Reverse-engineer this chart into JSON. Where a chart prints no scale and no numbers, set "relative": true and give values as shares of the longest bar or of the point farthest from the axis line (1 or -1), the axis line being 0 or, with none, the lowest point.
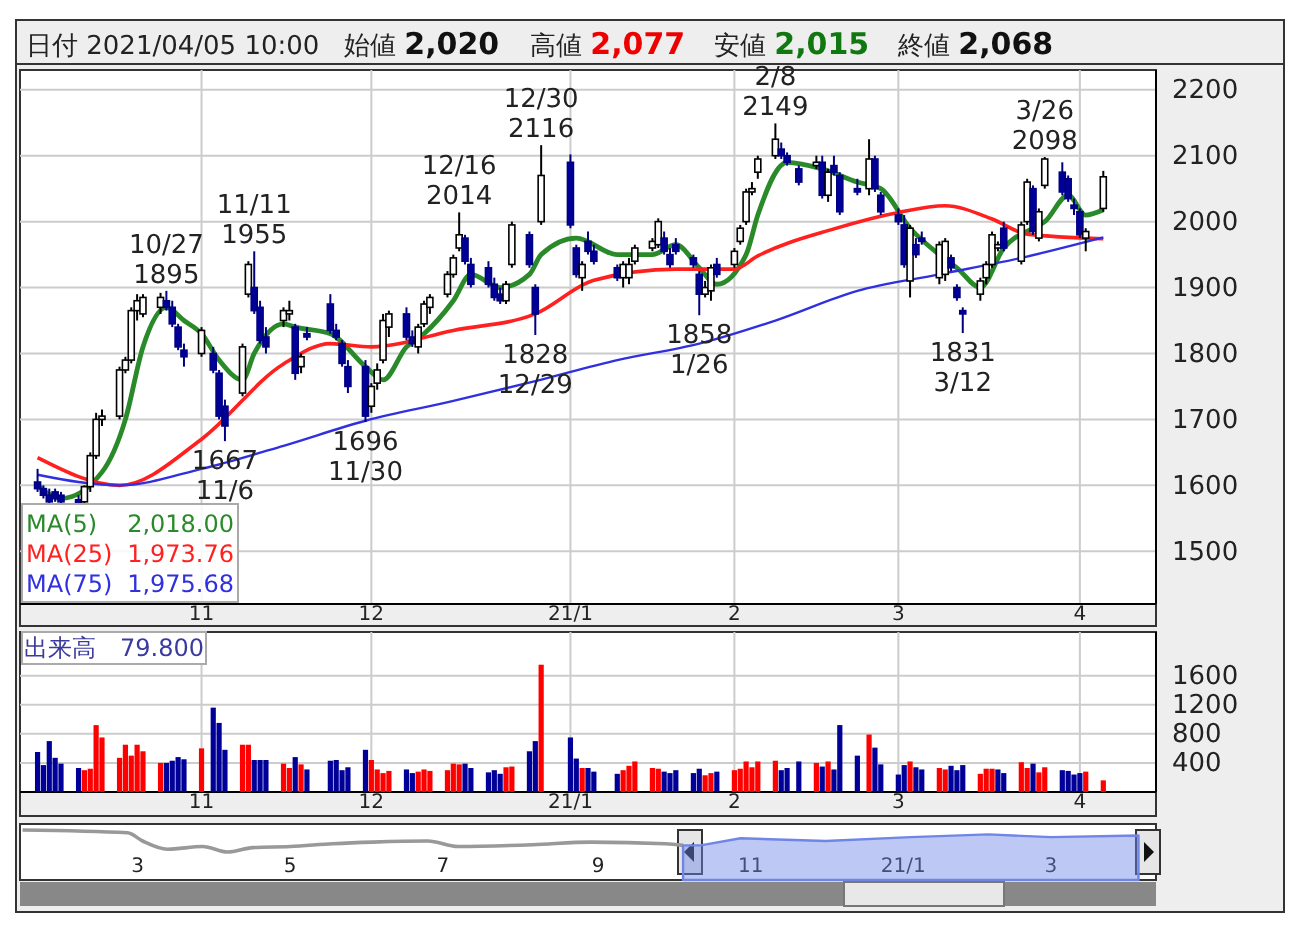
{
  "chart_data": [
    {
      "type": "candlestick",
      "xlim": [
        "2020-10-02",
        "2021-04-14"
      ],
      "ylim": [
        1420,
        2230
      ],
      "yticks": [
        1500,
        1600,
        1700,
        1800,
        1900,
        2000,
        2100,
        2200
      ],
      "xticks": [
        {
          "value": "2020-11-02",
          "label": "11"
        },
        {
          "value": "2020-12-01",
          "label": "12"
        },
        {
          "value": "2021-01-04",
          "label": "21/1"
        },
        {
          "value": "2021-02-01",
          "label": "2"
        },
        {
          "value": "2021-03-01",
          "label": "3"
        },
        {
          "value": "2021-04-01",
          "label": "4"
        }
      ],
      "grid": true,
      "legend": "bottom left",
      "x": [
        "2020-10-05",
        "2020-10-06",
        "2020-10-07",
        "2020-10-08",
        "2020-10-09",
        "2020-10-12",
        "2020-10-13",
        "2020-10-14",
        "2020-10-15",
        "2020-10-16",
        "2020-10-19",
        "2020-10-20",
        "2020-10-21",
        "2020-10-22",
        "2020-10-23",
        "2020-10-26",
        "2020-10-27",
        "2020-10-28",
        "2020-10-29",
        "2020-10-30",
        "2020-11-02",
        "2020-11-04",
        "2020-11-05",
        "2020-11-06",
        "2020-11-09",
        "2020-11-10",
        "2020-11-11",
        "2020-11-12",
        "2020-11-13",
        "2020-11-16",
        "2020-11-17",
        "2020-11-18",
        "2020-11-19",
        "2020-11-20",
        "2020-11-24",
        "2020-11-25",
        "2020-11-26",
        "2020-11-27",
        "2020-11-30",
        "2020-12-01",
        "2020-12-02",
        "2020-12-03",
        "2020-12-04",
        "2020-12-07",
        "2020-12-08",
        "2020-12-09",
        "2020-12-10",
        "2020-12-11",
        "2020-12-14",
        "2020-12-15",
        "2020-12-16",
        "2020-12-17",
        "2020-12-18",
        "2020-12-21",
        "2020-12-22",
        "2020-12-23",
        "2020-12-24",
        "2020-12-25",
        "2020-12-28",
        "2020-12-29",
        "2020-12-30",
        "2021-01-04",
        "2021-01-05",
        "2021-01-06",
        "2021-01-07",
        "2021-01-08",
        "2021-01-12",
        "2021-01-13",
        "2021-01-14",
        "2021-01-15",
        "2021-01-18",
        "2021-01-19",
        "2021-01-20",
        "2021-01-21",
        "2021-01-22",
        "2021-01-25",
        "2021-01-26",
        "2021-01-27",
        "2021-01-28",
        "2021-01-29",
        "2021-02-01",
        "2021-02-02",
        "2021-02-03",
        "2021-02-04",
        "2021-02-05",
        "2021-02-08",
        "2021-02-09",
        "2021-02-10",
        "2021-02-12",
        "2021-02-15",
        "2021-02-16",
        "2021-02-17",
        "2021-02-18",
        "2021-02-19",
        "2021-02-22",
        "2021-02-24",
        "2021-02-25",
        "2021-02-26",
        "2021-03-01",
        "2021-03-02",
        "2021-03-03",
        "2021-03-04",
        "2021-03-05",
        "2021-03-08",
        "2021-03-09",
        "2021-03-10",
        "2021-03-11",
        "2021-03-12",
        "2021-03-15",
        "2021-03-16",
        "2021-03-17",
        "2021-03-18",
        "2021-03-19",
        "2021-03-22",
        "2021-03-23",
        "2021-03-24",
        "2021-03-25",
        "2021-03-26",
        "2021-03-29",
        "2021-03-30",
        "2021-03-31",
        "2021-04-01",
        "2021-04-02",
        "2021-04-05"
      ],
      "ohlc": [
        [
          1605,
          1625,
          1590,
          1595
        ],
        [
          1595,
          1600,
          1580,
          1585
        ],
        [
          1585,
          1595,
          1572,
          1575
        ],
        [
          1590,
          1595,
          1575,
          1580
        ],
        [
          1585,
          1590,
          1572,
          1575
        ],
        [
          1578,
          1585,
          1570,
          1572
        ],
        [
          1575,
          1600,
          1572,
          1598
        ],
        [
          1598,
          1650,
          1590,
          1645
        ],
        [
          1645,
          1710,
          1640,
          1700
        ],
        [
          1700,
          1715,
          1690,
          1705
        ],
        [
          1705,
          1780,
          1700,
          1775
        ],
        [
          1775,
          1795,
          1770,
          1790
        ],
        [
          1790,
          1870,
          1785,
          1865
        ],
        [
          1865,
          1890,
          1850,
          1880
        ],
        [
          1860,
          1890,
          1855,
          1885
        ],
        [
          1870,
          1892,
          1860,
          1885
        ],
        [
          1880,
          1895,
          1865,
          1870
        ],
        [
          1870,
          1880,
          1840,
          1845
        ],
        [
          1840,
          1845,
          1805,
          1810
        ],
        [
          1805,
          1815,
          1780,
          1795
        ],
        [
          1800,
          1840,
          1795,
          1835
        ],
        [
          1800,
          1810,
          1770,
          1775
        ],
        [
          1770,
          1775,
          1700,
          1705
        ],
        [
          1720,
          1730,
          1667,
          1690
        ],
        [
          1740,
          1815,
          1735,
          1810
        ],
        [
          1890,
          1940,
          1885,
          1935
        ],
        [
          1900,
          1955,
          1860,
          1865
        ],
        [
          1870,
          1880,
          1815,
          1820
        ],
        [
          1825,
          1840,
          1800,
          1810
        ],
        [
          1850,
          1870,
          1840,
          1865
        ],
        [
          1860,
          1880,
          1850,
          1865
        ],
        [
          1840,
          1845,
          1760,
          1770
        ],
        [
          1780,
          1800,
          1770,
          1795
        ],
        [
          1830,
          1840,
          1820,
          1825
        ],
        [
          1875,
          1890,
          1830,
          1835
        ],
        [
          1835,
          1845,
          1820,
          1825
        ],
        [
          1815,
          1820,
          1780,
          1785
        ],
        [
          1780,
          1790,
          1740,
          1750
        ],
        [
          1780,
          1790,
          1696,
          1705
        ],
        [
          1720,
          1755,
          1710,
          1750
        ],
        [
          1755,
          1785,
          1745,
          1775
        ],
        [
          1790,
          1860,
          1785,
          1850
        ],
        [
          1840,
          1865,
          1825,
          1860
        ],
        [
          1860,
          1870,
          1820,
          1825
        ],
        [
          1825,
          1835,
          1810,
          1815
        ],
        [
          1810,
          1845,
          1800,
          1840
        ],
        [
          1845,
          1880,
          1840,
          1875
        ],
        [
          1870,
          1890,
          1860,
          1885
        ],
        [
          1890,
          1925,
          1885,
          1920
        ],
        [
          1920,
          1950,
          1915,
          1945
        ],
        [
          1960,
          2014,
          1955,
          1980
        ],
        [
          1975,
          1980,
          1935,
          1940
        ],
        [
          1935,
          1945,
          1900,
          1905
        ],
        [
          1930,
          1940,
          1900,
          1905
        ],
        [
          1905,
          1915,
          1880,
          1885
        ],
        [
          1890,
          1900,
          1875,
          1880
        ],
        [
          1880,
          1910,
          1875,
          1905
        ],
        [
          1935,
          2000,
          1930,
          1995
        ],
        [
          1980,
          1985,
          1930,
          1935
        ],
        [
          1900,
          1905,
          1828,
          1860
        ],
        [
          2000,
          2116,
          1995,
          2070
        ],
        [
          2090,
          2102,
          1990,
          1995
        ],
        [
          1960,
          1965,
          1915,
          1920
        ],
        [
          1915,
          1940,
          1895,
          1935
        ],
        [
          1970,
          1985,
          1950,
          1955
        ],
        [
          1955,
          1965,
          1935,
          1940
        ],
        [
          1930,
          1935,
          1910,
          1915
        ],
        [
          1915,
          1940,
          1900,
          1935
        ],
        [
          1915,
          1945,
          1905,
          1935
        ],
        [
          1940,
          1965,
          1935,
          1960
        ],
        [
          1960,
          1975,
          1955,
          1970
        ],
        [
          1965,
          2005,
          1960,
          2000
        ],
        [
          1975,
          1985,
          1950,
          1955
        ],
        [
          1950,
          1960,
          1930,
          1935
        ],
        [
          1965,
          1975,
          1950,
          1955
        ],
        [
          1945,
          1950,
          1930,
          1935
        ],
        [
          1920,
          1925,
          1858,
          1890
        ],
        [
          1890,
          1910,
          1885,
          1900
        ],
        [
          1895,
          1935,
          1880,
          1930
        ],
        [
          1935,
          1945,
          1915,
          1920
        ],
        [
          1935,
          1960,
          1930,
          1955
        ],
        [
          1970,
          1995,
          1965,
          1990
        ],
        [
          2000,
          2050,
          1995,
          2045
        ],
        [
          2045,
          2060,
          2040,
          2050
        ],
        [
          2075,
          2100,
          2065,
          2095
        ],
        [
          2100,
          2149,
          2095,
          2125
        ],
        [
          2110,
          2120,
          2095,
          2100
        ],
        [
          2100,
          2105,
          2085,
          2090
        ],
        [
          2080,
          2085,
          2055,
          2060
        ],
        [
          2085,
          2100,
          2080,
          2090
        ],
        [
          2090,
          2100,
          2035,
          2040
        ],
        [
          2040,
          2080,
          2030,
          2075
        ],
        [
          2085,
          2100,
          2070,
          2075
        ],
        [
          2070,
          2075,
          2010,
          2015
        ],
        [
          2050,
          2065,
          2040,
          2045
        ],
        [
          2050,
          2125,
          2040,
          2095
        ],
        [
          2095,
          2100,
          2045,
          2050
        ],
        [
          2040,
          2045,
          2010,
          2015
        ],
        [
          2010,
          2020,
          1995,
          2000
        ],
        [
          1995,
          2010,
          1930,
          1935
        ],
        [
          1910,
          1995,
          1885,
          1990
        ],
        [
          1965,
          1975,
          1945,
          1950
        ],
        [
          1975,
          1985,
          1965,
          1970
        ],
        [
          1915,
          1970,
          1905,
          1965
        ],
        [
          1920,
          1975,
          1910,
          1970
        ],
        [
          1945,
          1950,
          1925,
          1930
        ],
        [
          1900,
          1905,
          1880,
          1885
        ],
        [
          1865,
          1870,
          1831,
          1860
        ],
        [
          1890,
          1915,
          1880,
          1910
        ],
        [
          1915,
          1940,
          1905,
          1935
        ],
        [
          1935,
          1985,
          1930,
          1980
        ],
        [
          1960,
          1970,
          1955,
          1965
        ],
        [
          1990,
          2000,
          1955,
          1960
        ],
        [
          1940,
          2000,
          1935,
          1995
        ],
        [
          2000,
          2065,
          1995,
          2060
        ],
        [
          2050,
          2055,
          1980,
          1985
        ],
        [
          1975,
          2020,
          1970,
          2015
        ],
        [
          2055,
          2098,
          2050,
          2095
        ],
        [
          2075,
          2090,
          2040,
          2045
        ],
        [
          2065,
          2070,
          2030,
          2035
        ],
        [
          2025,
          2035,
          2010,
          2020
        ],
        [
          2015,
          2020,
          1975,
          1980
        ],
        [
          1975,
          1990,
          1955,
          1985
        ],
        [
          2020,
          2077,
          2015,
          2068
        ]
      ],
      "series": [
        {
          "name": "MA(5)",
          "type": "line",
          "color": "#2a8a2a",
          "x": [
            "2020-10-05",
            "2020-10-09",
            "2020-10-16",
            "2020-10-20",
            "2020-10-23",
            "2020-10-27",
            "2020-10-30",
            "2020-11-02",
            "2020-11-05",
            "2020-11-09",
            "2020-11-11",
            "2020-11-16",
            "2020-11-18",
            "2020-11-24",
            "2020-11-30",
            "2020-12-03",
            "2020-12-07",
            "2020-12-10",
            "2020-12-15",
            "2020-12-18",
            "2020-12-23",
            "2020-12-28",
            "2020-12-30",
            "2021-01-05",
            "2021-01-12",
            "2021-01-18",
            "2021-01-22",
            "2021-01-26",
            "2021-01-29",
            "2021-02-03",
            "2021-02-05",
            "2021-02-10",
            "2021-02-16",
            "2021-02-22",
            "2021-02-26",
            "2021-03-03",
            "2021-03-08",
            "2021-03-11",
            "2021-03-15",
            "2021-03-19",
            "2021-03-24",
            "2021-03-26",
            "2021-03-30",
            "2021-04-02",
            "2021-04-05"
          ],
          "values": [
            1600,
            1580,
            1620,
            1700,
            1810,
            1870,
            1850,
            1830,
            1790,
            1760,
            1800,
            1845,
            1840,
            1830,
            1780,
            1760,
            1810,
            1830,
            1880,
            1920,
            1900,
            1920,
            1950,
            1975,
            1950,
            1950,
            1965,
            1930,
            1905,
            1950,
            2010,
            2090,
            2080,
            2060,
            2050,
            1990,
            1950,
            1930,
            1900,
            1960,
            1990,
            2000,
            2040,
            2010,
            2018
          ]
        },
        {
          "name": "MA(25)",
          "type": "line",
          "color": "#ff2020",
          "x": [
            "2020-10-05",
            "2020-10-19",
            "2020-11-02",
            "2020-11-16",
            "2020-11-24",
            "2020-12-01",
            "2020-12-15",
            "2020-12-29",
            "2021-01-08",
            "2021-01-22",
            "2021-02-01",
            "2021-02-05",
            "2021-02-18",
            "2021-03-01",
            "2021-03-09",
            "2021-03-17",
            "2021-03-23",
            "2021-04-05"
          ],
          "values": [
            1642,
            1600,
            1670,
            1784,
            1815,
            1810,
            1835,
            1860,
            1911,
            1928,
            1928,
            1948,
            1989,
            2014,
            2024,
            2004,
            1981,
            1974
          ]
        },
        {
          "name": "MA(75)",
          "type": "line",
          "color": "#3030e0",
          "x": [
            "2020-10-05",
            "2020-10-12",
            "2020-10-19",
            "2020-11-02",
            "2020-11-16",
            "2020-11-30",
            "2020-12-15",
            "2020-12-29",
            "2021-01-12",
            "2021-01-26",
            "2021-02-08",
            "2021-02-22",
            "2021-03-08",
            "2021-03-22",
            "2021-04-05"
          ],
          "values": [
            1616,
            1605,
            1600,
            1625,
            1660,
            1698,
            1728,
            1758,
            1790,
            1815,
            1850,
            1895,
            1920,
            1945,
            1976
          ]
        }
      ],
      "annotations": [
        "日付 2021/04/05 10:00",
        "始値 2,020",
        "高値 2,077",
        "安値 2,015",
        "終値 2,068",
        {
          "text": "10/27\n1895",
          "x": "2020-10-27",
          "y": 1895
        },
        {
          "text": "11/11\n1955",
          "x": "2020-11-11",
          "y": 1955
        },
        {
          "text": "1667\n11/6",
          "x": "2020-11-06",
          "y": 1667
        },
        {
          "text": "12/16\n2014",
          "x": "2020-12-16",
          "y": 2014
        },
        {
          "text": "1696\n11/30",
          "x": "2020-11-30",
          "y": 1696
        },
        {
          "text": "12/30\n2116",
          "x": "2020-12-30",
          "y": 2116
        },
        {
          "text": "1828\n12/29",
          "x": "2020-12-29",
          "y": 1828
        },
        {
          "text": "1858\n1/26",
          "x": "2021-01-26",
          "y": 1858
        },
        {
          "text": "2/8\n2149",
          "x": "2021-02-08",
          "y": 2149
        },
        {
          "text": "1831\n3/12",
          "x": "2021-03-12",
          "y": 1831
        },
        {
          "text": "3/26\n2098",
          "x": "2021-03-26",
          "y": 2098
        },
        "2,018.00",
        "1,973.76",
        "1,975.68"
      ]
    },
    {
      "type": "bar",
      "xlim": [
        "2020-10-02",
        "2021-04-14"
      ],
      "ylim": [
        0,
        2200
      ],
      "yticks": [
        400,
        800,
        1200,
        1600
      ],
      "xticks": [
        {
          "value": "2020-11-02",
          "label": "11"
        },
        {
          "value": "2020-12-01",
          "label": "12"
        },
        {
          "value": "2021-01-04",
          "label": "21/1"
        },
        {
          "value": "2021-02-01",
          "label": "2"
        },
        {
          "value": "2021-03-01",
          "label": "3"
        },
        {
          "value": "2021-04-01",
          "label": "4"
        }
      ],
      "grid": true,
      "x": [
        "2020-10-05",
        "2020-10-06",
        "2020-10-07",
        "2020-10-08",
        "2020-10-09",
        "2020-10-12",
        "2020-10-13",
        "2020-10-14",
        "2020-10-15",
        "2020-10-16",
        "2020-10-19",
        "2020-10-20",
        "2020-10-21",
        "2020-10-22",
        "2020-10-23",
        "2020-10-26",
        "2020-10-27",
        "2020-10-28",
        "2020-10-29",
        "2020-10-30",
        "2020-11-02",
        "2020-11-04",
        "2020-11-05",
        "2020-11-06",
        "2020-11-09",
        "2020-11-10",
        "2020-11-11",
        "2020-11-12",
        "2020-11-13",
        "2020-11-16",
        "2020-11-17",
        "2020-11-18",
        "2020-11-19",
        "2020-11-20",
        "2020-11-24",
        "2020-11-25",
        "2020-11-26",
        "2020-11-27",
        "2020-11-30",
        "2020-12-01",
        "2020-12-02",
        "2020-12-03",
        "2020-12-04",
        "2020-12-07",
        "2020-12-08",
        "2020-12-09",
        "2020-12-10",
        "2020-12-11",
        "2020-12-14",
        "2020-12-15",
        "2020-12-16",
        "2020-12-17",
        "2020-12-18",
        "2020-12-21",
        "2020-12-22",
        "2020-12-23",
        "2020-12-24",
        "2020-12-25",
        "2020-12-28",
        "2020-12-29",
        "2020-12-30",
        "2021-01-04",
        "2021-01-05",
        "2021-01-06",
        "2021-01-07",
        "2021-01-08",
        "2021-01-12",
        "2021-01-13",
        "2021-01-14",
        "2021-01-15",
        "2021-01-18",
        "2021-01-19",
        "2021-01-20",
        "2021-01-21",
        "2021-01-22",
        "2021-01-25",
        "2021-01-26",
        "2021-01-27",
        "2021-01-28",
        "2021-01-29",
        "2021-02-01",
        "2021-02-02",
        "2021-02-03",
        "2021-02-04",
        "2021-02-05",
        "2021-02-08",
        "2021-02-09",
        "2021-02-10",
        "2021-02-12",
        "2021-02-15",
        "2021-02-16",
        "2021-02-17",
        "2021-02-18",
        "2021-02-19",
        "2021-02-22",
        "2021-02-24",
        "2021-02-25",
        "2021-02-26",
        "2021-03-01",
        "2021-03-02",
        "2021-03-03",
        "2021-03-04",
        "2021-03-05",
        "2021-03-08",
        "2021-03-09",
        "2021-03-10",
        "2021-03-11",
        "2021-03-12",
        "2021-03-15",
        "2021-03-16",
        "2021-03-17",
        "2021-03-18",
        "2021-03-19",
        "2021-03-22",
        "2021-03-23",
        "2021-03-24",
        "2021-03-25",
        "2021-03-26",
        "2021-03-29",
        "2021-03-30",
        "2021-03-31",
        "2021-04-01",
        "2021-04-02",
        "2021-04-05"
      ],
      "values": [
        550,
        370,
        700,
        470,
        390,
        330,
        300,
        320,
        920,
        750,
        470,
        650,
        500,
        650,
        560,
        400,
        400,
        430,
        480,
        450,
        600,
        1160,
        950,
        580,
        650,
        650,
        440,
        440,
        440,
        390,
        330,
        480,
        380,
        310,
        430,
        440,
        300,
        340,
        580,
        440,
        310,
        260,
        290,
        310,
        260,
        280,
        310,
        290,
        300,
        390,
        380,
        390,
        330,
        270,
        300,
        250,
        340,
        350,
        560,
        700,
        1750,
        750,
        460,
        330,
        330,
        280,
        250,
        300,
        360,
        420,
        330,
        320,
        280,
        260,
        300,
        260,
        320,
        230,
        260,
        280,
        300,
        320,
        420,
        340,
        420,
        430,
        300,
        330,
        420,
        400,
        350,
        420,
        310,
        920,
        500,
        790,
        610,
        380,
        240,
        370,
        420,
        340,
        310,
        330,
        310,
        360,
        300,
        370,
        250,
        320,
        320,
        310,
        260,
        410,
        330,
        390,
        270,
        340,
        300,
        290,
        240,
        260,
        280,
        160
      ],
      "colors": [
        "#000099",
        "#000099",
        "#000099",
        "#000099",
        "#000099",
        "#000099",
        "#ff0000",
        "#ff0000",
        "#ff0000",
        "#ff0000",
        "#ff0000",
        "#ff0000",
        "#ff0000",
        "#ff0000",
        "#ff0000",
        "#ff0000",
        "#000099",
        "#000099",
        "#000099",
        "#000099",
        "#ff0000",
        "#000099",
        "#000099",
        "#000099",
        "#ff0000",
        "#ff0000",
        "#000099",
        "#000099",
        "#000099",
        "#ff0000",
        "#ff0000",
        "#000099",
        "#ff0000",
        "#000099",
        "#000099",
        "#000099",
        "#000099",
        "#000099",
        "#000099",
        "#ff0000",
        "#ff0000",
        "#ff0000",
        "#ff0000",
        "#000099",
        "#000099",
        "#ff0000",
        "#ff0000",
        "#ff0000",
        "#ff0000",
        "#ff0000",
        "#ff0000",
        "#000099",
        "#000099",
        "#000099",
        "#000099",
        "#000099",
        "#ff0000",
        "#ff0000",
        "#000099",
        "#000099",
        "#ff0000",
        "#000099",
        "#000099",
        "#ff0000",
        "#000099",
        "#000099",
        "#000099",
        "#ff0000",
        "#ff0000",
        "#ff0000",
        "#ff0000",
        "#ff0000",
        "#000099",
        "#000099",
        "#000099",
        "#000099",
        "#000099",
        "#ff0000",
        "#ff0000",
        "#000099",
        "#ff0000",
        "#ff0000",
        "#ff0000",
        "#ff0000",
        "#ff0000",
        "#ff0000",
        "#000099",
        "#000099",
        "#000099",
        "#ff0000",
        "#000099",
        "#ff0000",
        "#000099",
        "#000099",
        "#000099",
        "#ff0000",
        "#000099",
        "#000099",
        "#000099",
        "#000099",
        "#ff0000",
        "#000099",
        "#000099",
        "#ff0000",
        "#ff0000",
        "#000099",
        "#000099",
        "#000099",
        "#ff0000",
        "#ff0000",
        "#ff0000",
        "#000099",
        "#000099",
        "#ff0000",
        "#ff0000",
        "#000099",
        "#ff0000",
        "#ff0000",
        "#000099",
        "#000099",
        "#000099",
        "#000099",
        "#ff0000",
        "#ff0000"
      ],
      "annotations": [
        "出来高　79.800"
      ]
    },
    {
      "type": "line",
      "relative": true,
      "tick_labels": "x",
      "xlim": [
        "2020-01-14",
        "2021-04-12"
      ],
      "xticks": [
        {
          "value": "2020-03-01",
          "label": "3"
        },
        {
          "value": "2020-05-01",
          "label": "5"
        },
        {
          "value": "2020-07-01",
          "label": "7"
        },
        {
          "value": "2020-09-01",
          "label": "9"
        },
        {
          "value": "2020-11-01",
          "label": "11"
        },
        {
          "value": "2021-01-01",
          "label": "21/1"
        },
        {
          "value": "2021-03-01",
          "label": "3"
        }
      ],
      "series": [
        {
          "type": "line",
          "color": "#999999",
          "x": [
            "2020-01-15",
            "2020-02-26",
            "2020-03-03",
            "2020-03-13",
            "2020-03-27",
            "2020-04-06",
            "2020-04-16",
            "2020-05-01",
            "2020-05-18",
            "2020-06-03",
            "2020-06-25",
            "2020-07-07",
            "2020-08-06",
            "2020-08-29",
            "2020-09-28",
            "2020-10-05"
          ],
          "values": [
            1,
            0.875,
            0.5,
            0.125,
            0.25,
            0,
            0.2,
            0.25,
            0.375,
            0.45,
            0.5,
            0.25,
            0.33,
            0.45,
            0.375,
            0.3
          ]
        },
        {
          "type": "area",
          "color": "#6f86e6",
          "x": [
            "2020-10-05",
            "2020-10-12",
            "2020-10-28",
            "2020-12-01",
            "2021-01-04",
            "2021-02-04",
            "2021-03-01",
            "2021-04-05"
          ],
          "values": [
            0.3,
            0.3,
            0.625,
            0.5,
            0.675,
            0.8,
            0.675,
            0.75
          ]
        }
      ]
    }
  ]
}
